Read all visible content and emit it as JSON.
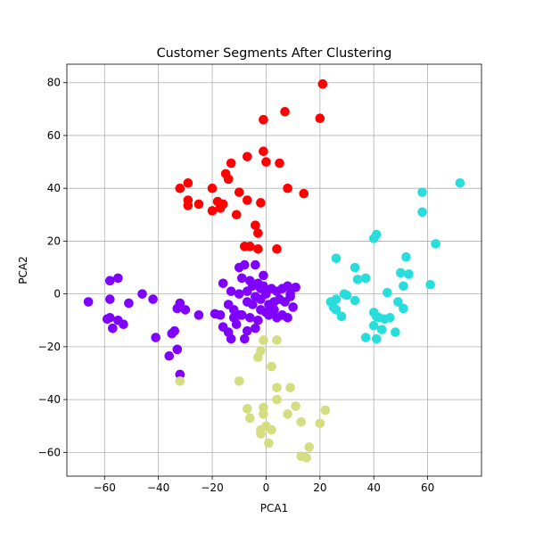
{
  "chart_data": {
    "type": "scatter",
    "title": "Customer Segments After Clustering",
    "xlabel": "PCA1",
    "ylabel": "PCA2",
    "xlim": [
      -74,
      80
    ],
    "ylim": [
      -69,
      87
    ],
    "xticks": [
      -60,
      -40,
      -20,
      0,
      20,
      40,
      60
    ],
    "yticks": [
      -60,
      -40,
      -20,
      0,
      20,
      40,
      60,
      80
    ],
    "grid": true,
    "series": [
      {
        "color": "#ff0000",
        "points": [
          [
            21,
            79.5
          ],
          [
            -1,
            66
          ],
          [
            7,
            69
          ],
          [
            20,
            66.5
          ],
          [
            -1,
            54
          ],
          [
            -7,
            52
          ],
          [
            0,
            50
          ],
          [
            5,
            49.5
          ],
          [
            -13,
            49.5
          ],
          [
            -15,
            45.5
          ],
          [
            -14,
            43.5
          ],
          [
            -29,
            42
          ],
          [
            -32,
            40
          ],
          [
            -20,
            40
          ],
          [
            -10,
            38.5
          ],
          [
            8,
            40
          ],
          [
            14,
            38
          ],
          [
            -29,
            35.5
          ],
          [
            -29,
            33.5
          ],
          [
            -25,
            34
          ],
          [
            -18,
            35
          ],
          [
            -16,
            34
          ],
          [
            -7,
            35.5
          ],
          [
            -2,
            34.5
          ],
          [
            -20,
            31.5
          ],
          [
            -17,
            32.5
          ],
          [
            -11,
            30
          ],
          [
            -4,
            26
          ],
          [
            -3,
            23
          ],
          [
            -8,
            18
          ],
          [
            -6,
            18
          ],
          [
            -3,
            17
          ],
          [
            4,
            17
          ]
        ]
      },
      {
        "color": "#8000ff",
        "points": [
          [
            -66,
            -3
          ],
          [
            -58,
            5
          ],
          [
            -55,
            6
          ],
          [
            -58,
            -2
          ],
          [
            -46,
            0
          ],
          [
            -42,
            -2
          ],
          [
            -51,
            -3.5
          ],
          [
            -59,
            -9.5
          ],
          [
            -58,
            -9
          ],
          [
            -55,
            -10
          ],
          [
            -53,
            -11.5
          ],
          [
            -57,
            -13
          ],
          [
            -41,
            -16.5
          ],
          [
            -32,
            -3.5
          ],
          [
            -33,
            -5.5
          ],
          [
            -30,
            -6
          ],
          [
            -25,
            -8
          ],
          [
            -35,
            -15
          ],
          [
            -34,
            -14
          ],
          [
            -33,
            -21
          ],
          [
            -36,
            -23.5
          ],
          [
            -32,
            -30.5
          ],
          [
            -19,
            -7.5
          ],
          [
            -17,
            -8
          ],
          [
            -16,
            -12.5
          ],
          [
            -14,
            -4
          ],
          [
            -16,
            4
          ],
          [
            -13,
            1
          ],
          [
            -12,
            -6
          ],
          [
            -10,
            -8
          ],
          [
            -11,
            -11.5
          ],
          [
            -14,
            -14.5
          ],
          [
            -13,
            -17
          ],
          [
            -7,
            -14
          ],
          [
            -8,
            -17
          ],
          [
            -10,
            10
          ],
          [
            -8,
            11
          ],
          [
            -4,
            11
          ],
          [
            -9,
            6
          ],
          [
            -6,
            5
          ],
          [
            -5,
            3
          ],
          [
            -3,
            4
          ],
          [
            -2,
            2
          ],
          [
            -1,
            3
          ],
          [
            -10,
            0
          ],
          [
            -7,
            1
          ],
          [
            -4,
            -1
          ],
          [
            -2,
            -2
          ],
          [
            0,
            0
          ],
          [
            2,
            2
          ],
          [
            4,
            1
          ],
          [
            6,
            2
          ],
          [
            8,
            3
          ],
          [
            11,
            2.5
          ],
          [
            -7,
            -3
          ],
          [
            -5,
            -4
          ],
          [
            -2,
            -6
          ],
          [
            1,
            -4
          ],
          [
            3,
            -3
          ],
          [
            5,
            -2
          ],
          [
            7,
            -3
          ],
          [
            9,
            -1
          ],
          [
            10,
            -5
          ],
          [
            -9,
            -8
          ],
          [
            -6,
            -9
          ],
          [
            -3,
            -10
          ],
          [
            1,
            -8
          ],
          [
            4,
            -9
          ],
          [
            6,
            -8
          ],
          [
            8,
            -9
          ],
          [
            -4,
            -13
          ],
          [
            0,
            -7
          ],
          [
            -12,
            -9
          ],
          [
            -1,
            7
          ],
          [
            3,
            -6
          ],
          [
            9,
            0
          ]
        ]
      },
      {
        "color": "#2adddd",
        "points": [
          [
            72,
            42
          ],
          [
            58,
            38.5
          ],
          [
            58,
            31
          ],
          [
            63,
            19
          ],
          [
            41,
            22.5
          ],
          [
            40,
            21
          ],
          [
            26,
            13.5
          ],
          [
            33,
            10
          ],
          [
            34,
            5.5
          ],
          [
            37,
            6
          ],
          [
            50,
            8
          ],
          [
            52,
            14
          ],
          [
            53,
            7.5
          ],
          [
            61,
            3.5
          ],
          [
            51,
            3
          ],
          [
            45,
            0.5
          ],
          [
            29,
            0
          ],
          [
            30,
            -0.5
          ],
          [
            26,
            -2
          ],
          [
            24,
            -3
          ],
          [
            33,
            -2.5
          ],
          [
            49,
            -3
          ],
          [
            25,
            -5
          ],
          [
            51,
            -5.5
          ],
          [
            26,
            -6
          ],
          [
            28,
            -8.5
          ],
          [
            40,
            -7
          ],
          [
            41,
            -8.5
          ],
          [
            42,
            -9
          ],
          [
            44,
            -9.5
          ],
          [
            46,
            -9
          ],
          [
            43,
            -13.5
          ],
          [
            48,
            -14.5
          ],
          [
            37,
            -16.5
          ],
          [
            41,
            -17
          ],
          [
            40,
            -12
          ]
        ]
      },
      {
        "color": "#d4dd80",
        "points": [
          [
            -32,
            -33
          ],
          [
            -10,
            -33
          ],
          [
            4,
            -17.5
          ],
          [
            -1,
            -17.5
          ],
          [
            -2,
            -21.5
          ],
          [
            -3,
            -24
          ],
          [
            2,
            -27.5
          ],
          [
            4,
            -35.5
          ],
          [
            9,
            -35.5
          ],
          [
            4,
            -40
          ],
          [
            -7,
            -43.5
          ],
          [
            -1,
            -43
          ],
          [
            -1,
            -45.5
          ],
          [
            11,
            -42.5
          ],
          [
            8,
            -45.5
          ],
          [
            -6,
            -47
          ],
          [
            0,
            -50
          ],
          [
            2,
            -51.5
          ],
          [
            -2,
            -51.5
          ],
          [
            -2,
            -53
          ],
          [
            13,
            -48.5
          ],
          [
            20,
            -49
          ],
          [
            22,
            -44
          ],
          [
            1,
            -56.5
          ],
          [
            16,
            -58
          ],
          [
            13,
            -61.5
          ],
          [
            15,
            -62
          ]
        ]
      }
    ]
  }
}
